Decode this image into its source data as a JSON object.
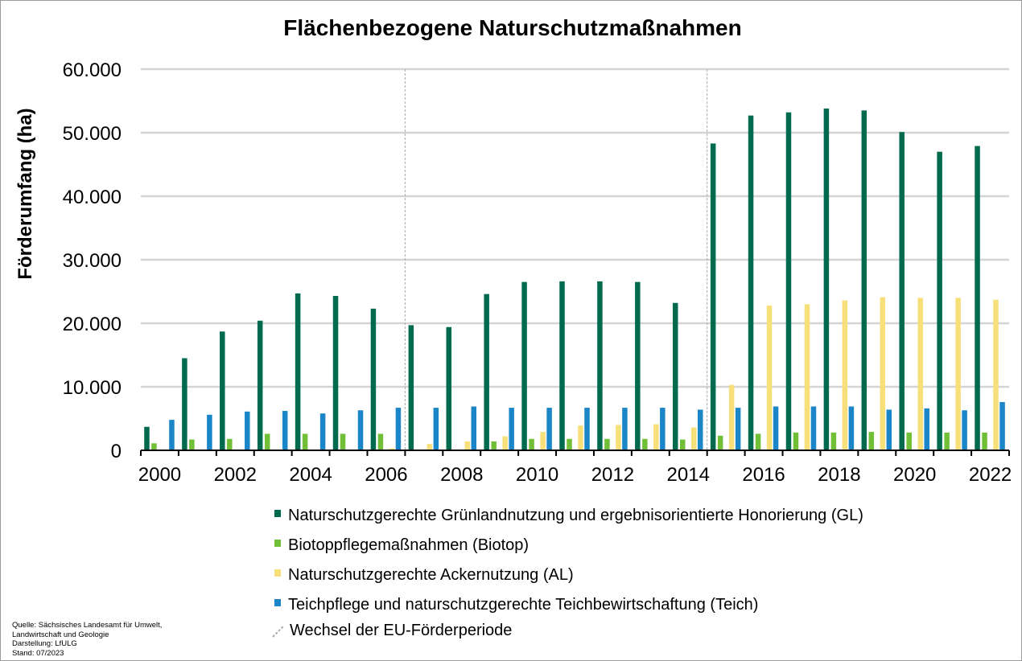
{
  "chart_data": {
    "type": "bar",
    "title": "Flächenbezogene Naturschutzmaßnahmen",
    "ylabel": "Förderumfang (ha)",
    "xlabel": "",
    "ylim": [
      0,
      60000
    ],
    "yticks": [
      0,
      10000,
      20000,
      30000,
      40000,
      50000,
      60000
    ],
    "ytick_labels": [
      "0",
      "10.000",
      "20.000",
      "30.000",
      "40.000",
      "50.000",
      "60.000"
    ],
    "categories": [
      "2000",
      "2001",
      "2002",
      "2003",
      "2004",
      "2005",
      "2006",
      "2007",
      "2008",
      "2009",
      "2010",
      "2011",
      "2012",
      "2013",
      "2014",
      "2015",
      "2016",
      "2017",
      "2018",
      "2019",
      "2020",
      "2021",
      "2022"
    ],
    "xtick_labels": [
      "2000",
      "2002",
      "2004",
      "2006",
      "2008",
      "2010",
      "2012",
      "2014",
      "2016",
      "2018",
      "2020",
      "2022"
    ],
    "grid": true,
    "legend_position": "bottom-right",
    "series": [
      {
        "name": "Naturschutzgerechte Grünlandnutzung und ergebnisorientierte Honorierung (GL)",
        "color": "#006a4e",
        "values": [
          3700,
          14500,
          18700,
          20400,
          24700,
          24300,
          22300,
          19700,
          19400,
          24600,
          26500,
          26600,
          26600,
          26500,
          23200,
          48300,
          52700,
          53200,
          53800,
          53500,
          50100,
          47000,
          47900
        ]
      },
      {
        "name": "Biotoppflegemaßnahmen (Biotop)",
        "color": "#70bf36",
        "values": [
          1100,
          1700,
          1800,
          2600,
          2600,
          2600,
          2600,
          0,
          0,
          1400,
          1800,
          1800,
          1800,
          1800,
          1700,
          2300,
          2600,
          2800,
          2800,
          2900,
          2800,
          2800,
          2800
        ]
      },
      {
        "name": "Naturschutzgerechte Ackernutzung (AL)",
        "color": "#f7df7a",
        "values": [
          0,
          0,
          0,
          0,
          0,
          0,
          300,
          1000,
          1400,
          2200,
          2900,
          3900,
          4000,
          4100,
          3600,
          10300,
          22800,
          23000,
          23600,
          24100,
          24000,
          24000,
          23700
        ]
      },
      {
        "name": "Teichpflege und naturschutzgerechte Teichbewirtschaftung (Teich)",
        "color": "#1a86c8",
        "values": [
          4800,
          5600,
          6100,
          6200,
          5800,
          6300,
          6700,
          6700,
          6900,
          6700,
          6700,
          6700,
          6700,
          6700,
          6400,
          6700,
          6900,
          6900,
          6900,
          6400,
          6600,
          6300,
          7600
        ]
      }
    ],
    "period_changes": {
      "label": "Wechsel der EU-Förderperiode",
      "color": "#aaaaaa",
      "between": [
        [
          "2006",
          "2007"
        ],
        [
          "2014",
          "2015"
        ]
      ]
    }
  },
  "source_note": {
    "line1": "Quelle: Sächsisches Landesamt für Umwelt,",
    "line2": "Landwirtschaft und Geologie",
    "line3": "Darstellung: LfULG",
    "line4": "Stand: 07/2023"
  }
}
